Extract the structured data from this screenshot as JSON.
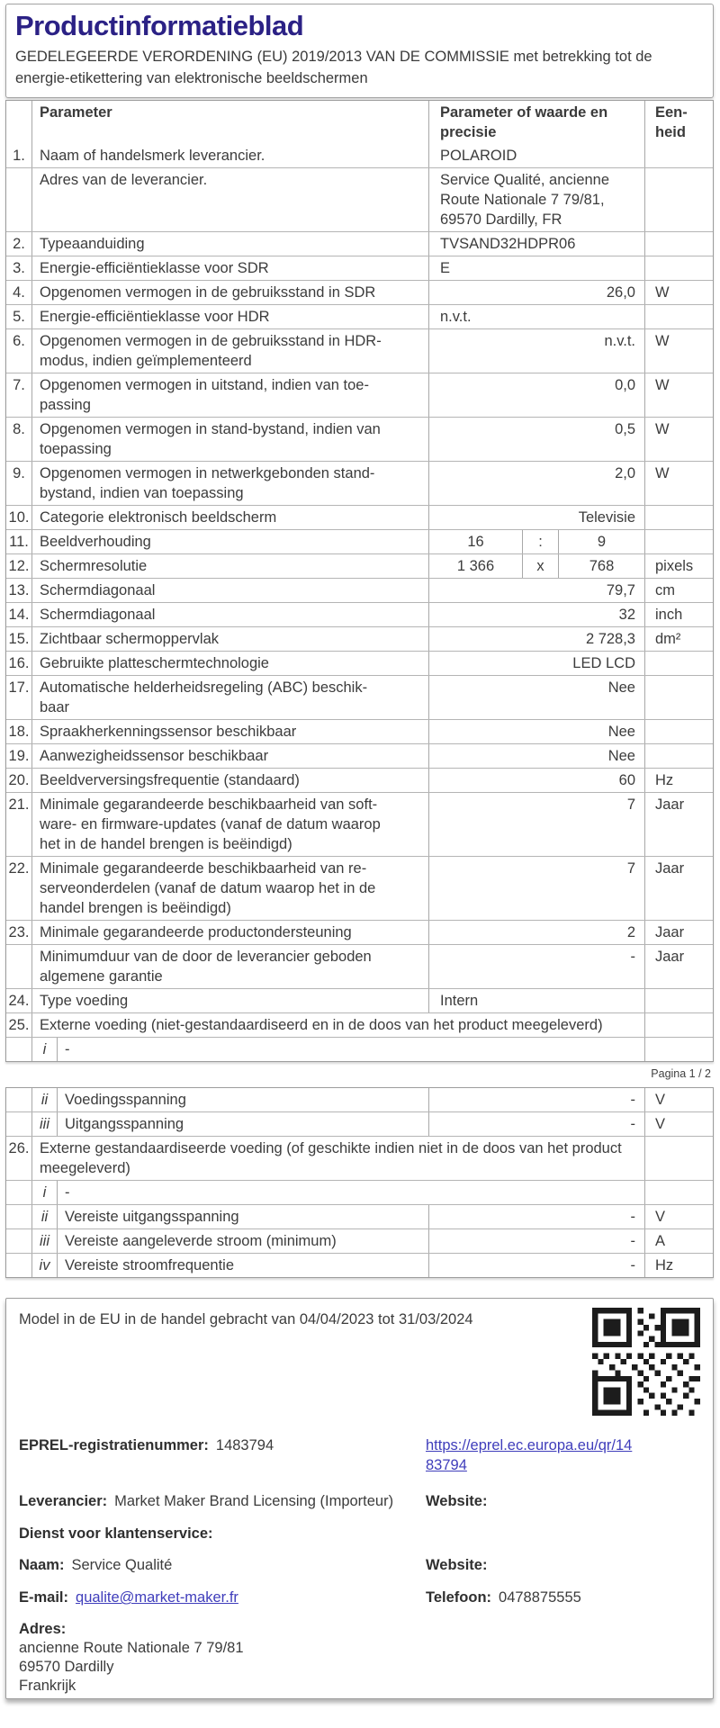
{
  "header": {
    "title": "Productinformatieblad",
    "subtitle": "GEDELEGEERDE VERORDENING (EU) 2019/2013 VAN DE COMMISSIE met betrekking tot de\nenergie-etikettering van elektronische beeldschermen"
  },
  "colors": {
    "title": "#2b2185",
    "link": "#3f3dbb",
    "text": "#3c3c3c",
    "table_border": "#a8a8a8"
  },
  "table1": {
    "headers": {
      "num": "",
      "parameter": "Parameter",
      "value": "Parameter of waarde en\nprecisie",
      "unit": "Een-\nheid"
    },
    "rows": [
      {
        "num": "1.",
        "param": "Naam of handelsmerk leverancier.",
        "value": "POLAROID",
        "unit": "",
        "align": "left"
      },
      {
        "num": "",
        "param": "Adres van de leverancier.",
        "value": "Service Qualité, ancienne\nRoute Nationale 7 79/81,\n69570 Dardilly, FR",
        "unit": "",
        "align": "left"
      },
      {
        "num": "2.",
        "param": "Typeaanduiding",
        "value": "TVSAND32HDPR06",
        "unit": "",
        "align": "left"
      },
      {
        "num": "3.",
        "param": "Energie-efficiëntieklasse voor SDR",
        "value": "E",
        "unit": "",
        "align": "left"
      },
      {
        "num": "4.",
        "param": "Opgenomen vermogen in de gebruiksstand in SDR",
        "value": "26,0",
        "unit": "W",
        "align": "right"
      },
      {
        "num": "5.",
        "param": "Energie-efficiëntieklasse voor HDR",
        "value": "n.v.t.",
        "unit": "",
        "align": "left"
      },
      {
        "num": "6.",
        "param": "Opgenomen vermogen in de gebruiksstand in HDR-\nmodus, indien geïmplementeerd",
        "value": "n.v.t.",
        "unit": "W",
        "align": "right"
      },
      {
        "num": "7.",
        "param": "Opgenomen vermogen in uitstand, indien van toe-\npassing",
        "value": "0,0",
        "unit": "W",
        "align": "right"
      },
      {
        "num": "8.",
        "param": "Opgenomen vermogen in stand-bystand, indien van\ntoepassing",
        "value": "0,5",
        "unit": "W",
        "align": "right"
      },
      {
        "num": "9.",
        "param": "Opgenomen vermogen in netwerkgebonden stand-\nbystand, indien van toepassing",
        "value": "2,0",
        "unit": "W",
        "align": "right"
      },
      {
        "num": "10.",
        "param": "Categorie elektronisch beeldscherm",
        "value": "Televisie",
        "unit": "",
        "align": "right"
      },
      {
        "num": "11.",
        "param": "Beeldverhouding",
        "type": "triple",
        "parts": [
          "16",
          ":",
          "9"
        ],
        "unit": ""
      },
      {
        "num": "12.",
        "param": "Schermresolutie",
        "type": "triple",
        "parts": [
          "1 366",
          "x",
          "768"
        ],
        "unit": "pixels"
      },
      {
        "num": "13.",
        "param": "Schermdiagonaal",
        "value": "79,7",
        "unit": "cm",
        "align": "right"
      },
      {
        "num": "14.",
        "param": "Schermdiagonaal",
        "value": "32",
        "unit": "inch",
        "align": "right"
      },
      {
        "num": "15.",
        "param": "Zichtbaar schermoppervlak",
        "value": "2 728,3",
        "unit": "dm²",
        "align": "right"
      },
      {
        "num": "16.",
        "param": "Gebruikte platteschermtechnologie",
        "value": "LED LCD",
        "unit": "",
        "align": "right"
      },
      {
        "num": "17.",
        "param": "Automatische helderheidsregeling (ABC) beschik-\nbaar",
        "value": "Nee",
        "unit": "",
        "align": "right"
      },
      {
        "num": "18.",
        "param": "Spraakherkenningssensor beschikbaar",
        "value": "Nee",
        "unit": "",
        "align": "right"
      },
      {
        "num": "19.",
        "param": "Aanwezigheidssensor beschikbaar",
        "value": "Nee",
        "unit": "",
        "align": "right"
      },
      {
        "num": "20.",
        "param": "Beeldverversingsfrequentie (standaard)",
        "value": "60",
        "unit": "Hz",
        "align": "right"
      },
      {
        "num": "21.",
        "param": "Minimale gegarandeerde beschikbaarheid van soft-\nware- en firmware-updates (vanaf de datum waarop\nhet in de handel brengen is beëindigd)",
        "value": "7",
        "unit": "Jaar",
        "align": "right"
      },
      {
        "num": "22.",
        "param": "Minimale gegarandeerde beschikbaarheid van re-\nserveonderdelen (vanaf de datum waarop het in de\nhandel brengen is beëindigd)",
        "value": "7",
        "unit": "Jaar",
        "align": "right"
      },
      {
        "num": "23.",
        "param": "Minimale gegarandeerde productondersteuning",
        "value": "2",
        "unit": "Jaar",
        "align": "right"
      },
      {
        "num": "",
        "param": "Minimumduur van de door de leverancier geboden\nalgemene garantie",
        "value": "-",
        "unit": "Jaar",
        "align": "right"
      },
      {
        "num": "24.",
        "param": "Type voeding",
        "value": "Intern",
        "unit": "",
        "align": "left"
      },
      {
        "num": "25.",
        "type": "span",
        "param": "Externe voeding (niet-gestandaardiseerd en in de doos van het product meegeleverd)",
        "unit": ""
      },
      {
        "num": "",
        "type": "sub",
        "roman": "i",
        "param": "-",
        "span_value": true,
        "unit": ""
      }
    ]
  },
  "page_indicator": "Pagina 1 / 2",
  "table2": {
    "rows": [
      {
        "num": "",
        "type": "sub",
        "roman": "ii",
        "param": "Voedingsspanning",
        "value": "-",
        "unit": "V",
        "align": "right"
      },
      {
        "num": "",
        "type": "sub",
        "roman": "iii",
        "param": "Uitgangsspanning",
        "value": "-",
        "unit": "V",
        "align": "right"
      },
      {
        "num": "26.",
        "type": "span",
        "param": "Externe gestandaardiseerde voeding (of geschikte indien niet in de doos van het product\nmeegeleverd)",
        "unit": ""
      },
      {
        "num": "",
        "type": "sub",
        "roman": "i",
        "param": "-",
        "span_value": true,
        "unit": ""
      },
      {
        "num": "",
        "type": "sub",
        "roman": "ii",
        "param": "Vereiste uitgangsspanning",
        "value": "-",
        "unit": "V",
        "align": "right"
      },
      {
        "num": "",
        "type": "sub",
        "roman": "iii",
        "param": "Vereiste aangeleverde stroom (minimum)",
        "value": "-",
        "unit": "A",
        "align": "right"
      },
      {
        "num": "",
        "type": "sub",
        "roman": "iv",
        "param": "Vereiste stroomfrequentie",
        "value": "-",
        "unit": "Hz",
        "align": "right"
      }
    ]
  },
  "footer": {
    "model_line": "Model in de EU in de handel gebracht van 04/04/2023 tot 31/03/2024",
    "eprel_label": "EPREL-registratienummer:",
    "eprel_value": "1483794",
    "eprel_link": "https://eprel.ec.europa.eu/qr/14\n83794",
    "leverancier_label": "Leverancier:",
    "leverancier_value": "Market Maker Brand Licensing (Importeur)",
    "website1_label": "Website:",
    "dienst_label": "Dienst voor klantenservice:",
    "naam_label": "Naam:",
    "naam_value": "Service Qualité",
    "website2_label": "Website:",
    "email_label": "E-mail:",
    "email_value": "qualite@market-maker.fr",
    "telefoon_label": "Telefoon:",
    "telefoon_value": "0478875555",
    "adres_label": "Adres:",
    "adres_lines": "ancienne Route Nationale 7 79/81\n69570 Dardilly\nFrankrijk"
  }
}
